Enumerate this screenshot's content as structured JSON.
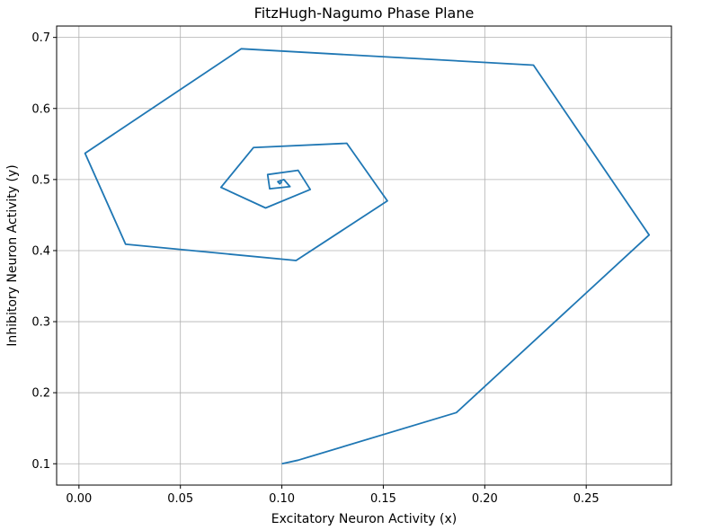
{
  "chart_data": {
    "type": "line",
    "title": "FitzHugh-Nagumo Phase Plane",
    "xlabel": "Excitatory Neuron Activity (x)",
    "ylabel": "Inhibitory Neuron Activity (y)",
    "xlim": [
      -0.011,
      0.292
    ],
    "ylim": [
      0.07,
      0.716
    ],
    "grid": true,
    "x_ticks": [
      0.0,
      0.05,
      0.1,
      0.15,
      0.2,
      0.25
    ],
    "x_tick_labels": [
      "0.00",
      "0.05",
      "0.10",
      "0.15",
      "0.20",
      "0.25"
    ],
    "y_ticks": [
      0.1,
      0.2,
      0.3,
      0.4,
      0.5,
      0.6,
      0.7
    ],
    "y_tick_labels": [
      "0.1",
      "0.2",
      "0.3",
      "0.4",
      "0.5",
      "0.6",
      "0.7"
    ],
    "series": [
      {
        "color": "#1f77b4",
        "x": [
          0.1,
          0.108,
          0.186,
          0.281,
          0.224,
          0.08,
          0.003,
          0.023,
          0.107,
          0.152,
          0.132,
          0.086,
          0.07,
          0.092,
          0.114,
          0.108,
          0.093,
          0.094,
          0.104,
          0.101,
          0.098,
          0.099,
          0.1
        ],
        "y": [
          0.1,
          0.105,
          0.172,
          0.422,
          0.661,
          0.684,
          0.537,
          0.409,
          0.386,
          0.47,
          0.551,
          0.545,
          0.489,
          0.46,
          0.486,
          0.513,
          0.507,
          0.487,
          0.49,
          0.5,
          0.497,
          0.494,
          0.497
        ]
      }
    ]
  }
}
